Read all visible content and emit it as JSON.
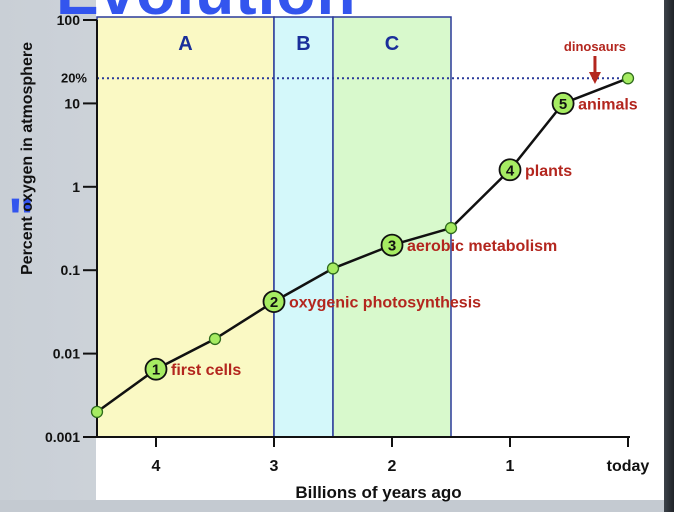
{
  "slide": {
    "title_fragment": "Evolution",
    "left_fragment": "\""
  },
  "chart_data": {
    "type": "line",
    "title": "",
    "xlabel": "Billions of years ago",
    "ylabel": "Percent oxygen in atmosphere",
    "y_scale": "log",
    "xlim": [
      4.5,
      0
    ],
    "ylim": [
      0.001,
      100
    ],
    "x_ticks": [
      {
        "value": 4,
        "label": "4"
      },
      {
        "value": 3,
        "label": "3"
      },
      {
        "value": 2,
        "label": "2"
      },
      {
        "value": 1,
        "label": "1"
      },
      {
        "value": 0,
        "label": "today"
      }
    ],
    "y_ticks": [
      {
        "value": 100,
        "label": "100"
      },
      {
        "value": 10,
        "label": "10"
      },
      {
        "value": 1,
        "label": "1"
      },
      {
        "value": 0.1,
        "label": "0.1"
      },
      {
        "value": 0.01,
        "label": "0.01"
      },
      {
        "value": 0.001,
        "label": "0.001"
      }
    ],
    "reference_line": {
      "y": 20,
      "label": "20%",
      "color": "#2a3a9a"
    },
    "regions": [
      {
        "label": "A",
        "x_start": 4.5,
        "x_end": 3.0,
        "color": "#faf9c4"
      },
      {
        "label": "B",
        "x_start": 3.0,
        "x_end": 2.5,
        "color": "#d4f8fa"
      },
      {
        "label": "C",
        "x_start": 2.5,
        "x_end": 1.5,
        "color": "#d8f9cc"
      }
    ],
    "series": [
      {
        "name": "",
        "color": "#111111",
        "points": [
          {
            "x": 4.5,
            "y": 0.002
          },
          {
            "x": 4.0,
            "y": 0.0065
          },
          {
            "x": 3.5,
            "y": 0.015
          },
          {
            "x": 3.0,
            "y": 0.042
          },
          {
            "x": 2.5,
            "y": 0.105
          },
          {
            "x": 2.0,
            "y": 0.2
          },
          {
            "x": 1.5,
            "y": 0.32
          },
          {
            "x": 1.0,
            "y": 1.6
          },
          {
            "x": 0.55,
            "y": 10
          },
          {
            "x": 0.0,
            "y": 20
          }
        ]
      }
    ],
    "milestones": [
      {
        "number": "1",
        "label": "first cells",
        "x": 4.0,
        "y": 0.0065
      },
      {
        "number": "2",
        "label": "oxygenic photosynthesis",
        "x": 3.0,
        "y": 0.042
      },
      {
        "number": "3",
        "label": "aerobic metabolism",
        "x": 2.0,
        "y": 0.2
      },
      {
        "number": "4",
        "label": "plants",
        "x": 1.0,
        "y": 1.6
      },
      {
        "number": "5",
        "label": "animals",
        "x": 0.55,
        "y": 10
      }
    ],
    "annotation": {
      "label": "dinosaurs",
      "x": 0.28,
      "color": "#b3261e"
    },
    "colors": {
      "axis": "#111111",
      "label_red": "#b3261e",
      "region_label": "#1a2f9a",
      "marker_fill": "#a6ec62",
      "marker_stroke": "#2f6b1c"
    }
  }
}
